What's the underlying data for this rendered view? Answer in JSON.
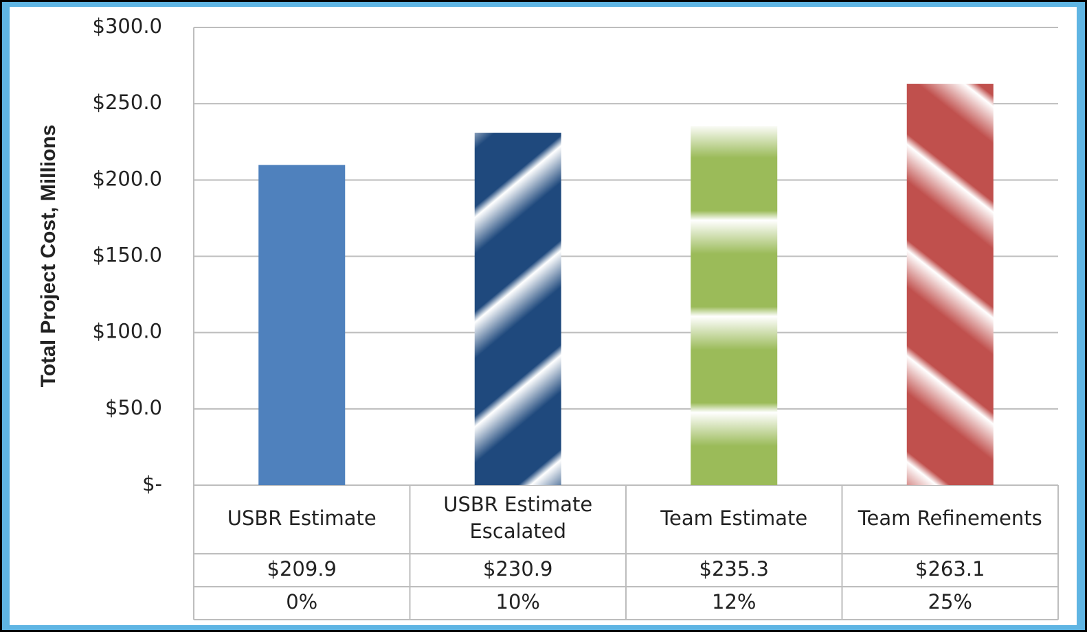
{
  "chart_data": {
    "type": "bar",
    "y_label": "Total Project Cost, Millions",
    "categories": [
      "USBR Estimate",
      "USBR Estimate Escalated",
      "Team Estimate",
      "Team Refinements"
    ],
    "values": [
      209.9,
      230.9,
      235.3,
      263.1
    ],
    "value_labels": [
      "$209.9",
      "$230.9",
      "$235.3",
      "$263.1"
    ],
    "change_labels": [
      "0%",
      "10%",
      "12%",
      "25%"
    ],
    "colors": [
      "#4f81bd",
      "#1f497d",
      "#9bbb59",
      "#c0504d"
    ],
    "ylim": [
      0,
      300
    ],
    "yticks": [
      {
        "value": 0,
        "label": "$-"
      },
      {
        "value": 50,
        "label": "$50.0"
      },
      {
        "value": 100,
        "label": "$100.0"
      },
      {
        "value": 150,
        "label": "$150.0"
      },
      {
        "value": 200,
        "label": "$200.0"
      },
      {
        "value": 250,
        "label": "$250.0"
      },
      {
        "value": 300,
        "label": "$300.0"
      }
    ],
    "grid": true
  }
}
